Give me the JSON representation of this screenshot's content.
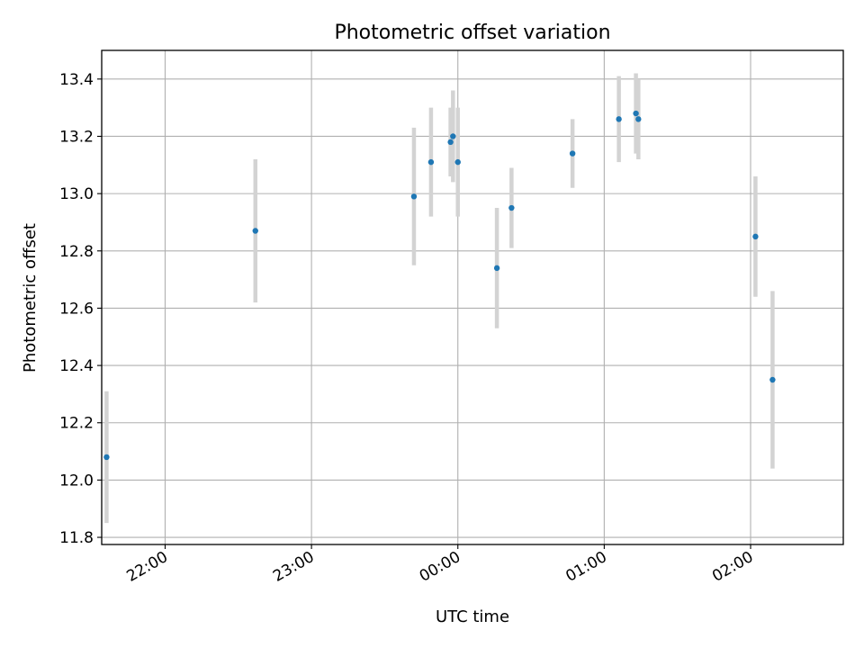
{
  "chart_data": {
    "type": "scatter",
    "title": "Photometric offset variation",
    "xlabel": "UTC time",
    "ylabel": "Photometric offset",
    "grid": true,
    "legend": "none",
    "xlim": [
      "21:34",
      "02:38"
    ],
    "ylim": [
      11.775,
      13.5
    ],
    "x_ticks": [
      "22:00",
      "23:00",
      "00:00",
      "01:00",
      "02:00"
    ],
    "y_ticks": [
      "11.8",
      "12.0",
      "12.2",
      "12.4",
      "12.6",
      "12.8",
      "13.0",
      "13.2",
      "13.4"
    ],
    "colors": {
      "points": "#1f77b4",
      "errorbars": "#d3d3d3",
      "grid": "#b0b0b0",
      "axes": "#000000"
    },
    "points": [
      {
        "time": "21:36",
        "y": 12.08,
        "yerr": 0.23
      },
      {
        "time": "22:37",
        "y": 12.87,
        "yerr": 0.25
      },
      {
        "time": "23:42",
        "y": 12.99,
        "yerr": 0.24
      },
      {
        "time": "23:49",
        "y": 13.11,
        "yerr": 0.19
      },
      {
        "time": "23:57",
        "y": 13.18,
        "yerr": 0.12
      },
      {
        "time": "23:58",
        "y": 13.2,
        "yerr": 0.16
      },
      {
        "time": "00:00",
        "y": 13.11,
        "yerr": 0.19
      },
      {
        "time": "00:16",
        "y": 12.74,
        "yerr": 0.21
      },
      {
        "time": "00:22",
        "y": 12.95,
        "yerr": 0.14
      },
      {
        "time": "00:47",
        "y": 13.14,
        "yerr": 0.12
      },
      {
        "time": "01:06",
        "y": 13.26,
        "yerr": 0.15
      },
      {
        "time": "01:13",
        "y": 13.28,
        "yerr": 0.14
      },
      {
        "time": "01:14",
        "y": 13.26,
        "yerr": 0.14
      },
      {
        "time": "02:02",
        "y": 12.85,
        "yerr": 0.21
      },
      {
        "time": "02:09",
        "y": 12.35,
        "yerr": 0.31
      }
    ]
  }
}
